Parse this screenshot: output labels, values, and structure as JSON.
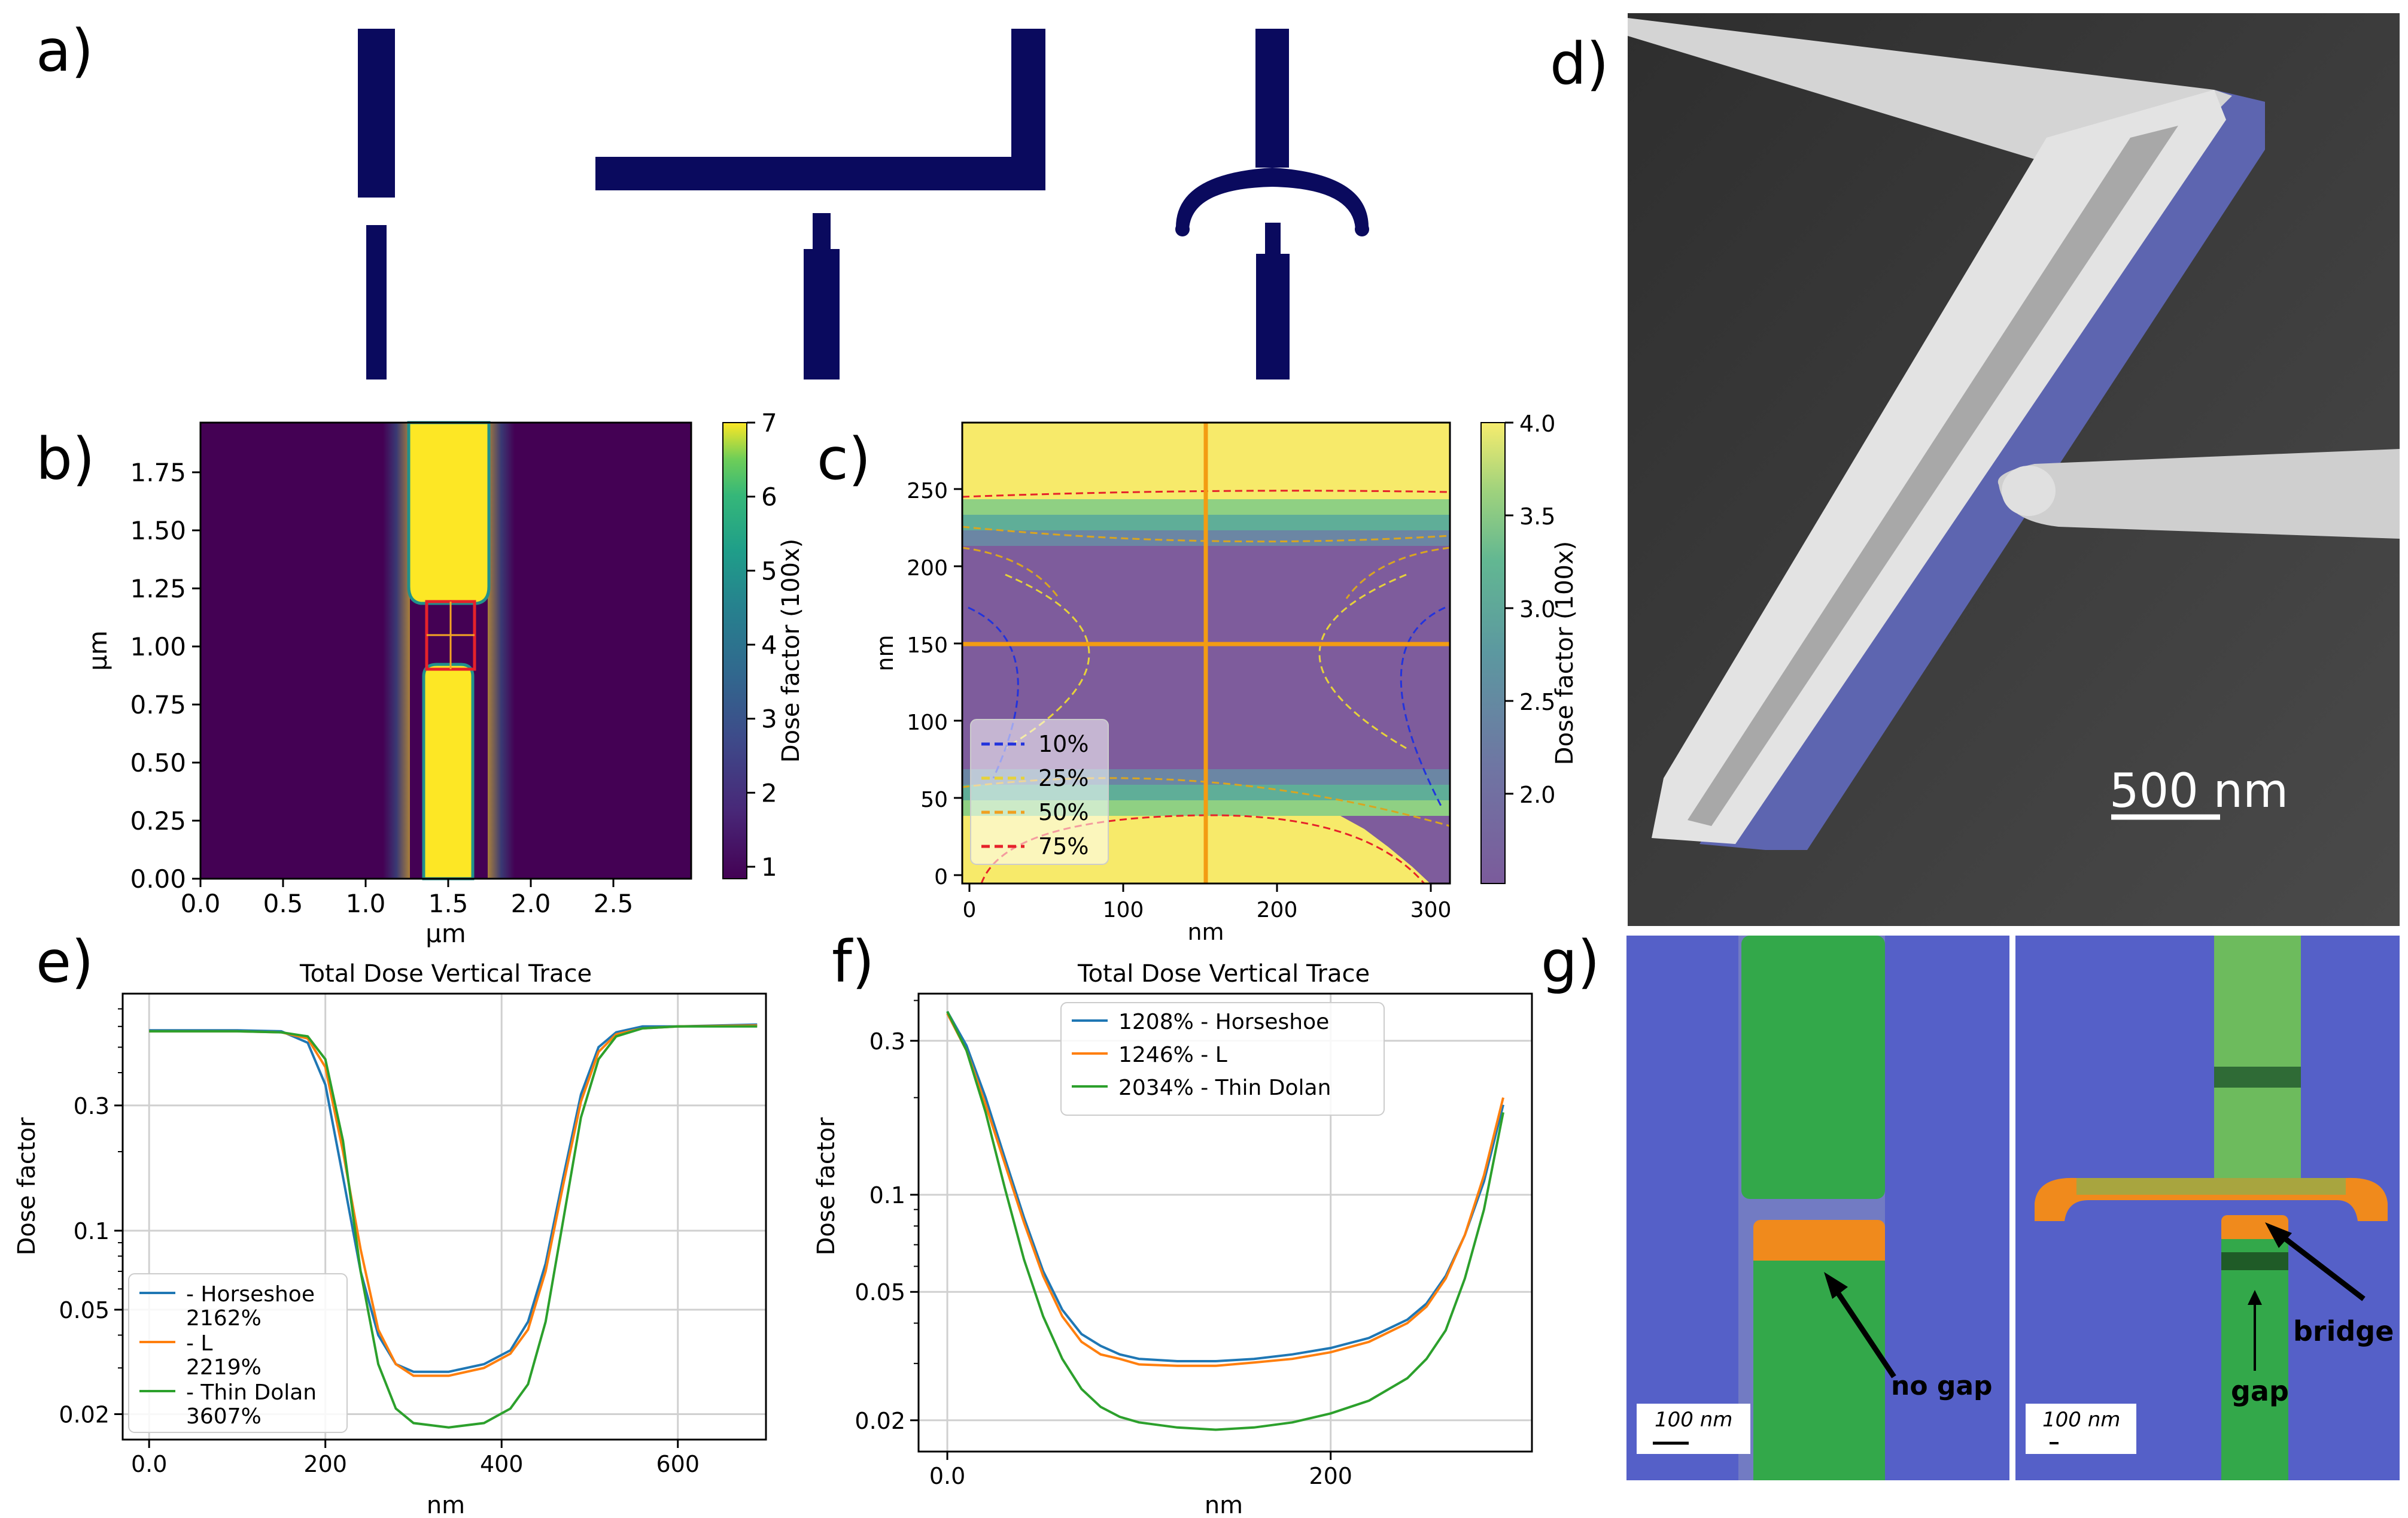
{
  "panel_labels": {
    "a": "a)",
    "b": "b)",
    "c": "c)",
    "d": "d)",
    "e": "e)",
    "f": "f)",
    "g": "g)"
  },
  "colors": {
    "navy": "#0a0a5e",
    "horseshoe": "#1f77b4",
    "l_shape": "#ff7f0e",
    "thin_dolan": "#2ca02c",
    "viridis_dark": "#440154",
    "viridis_yellow": "#fde725",
    "sem_bg": "#3d3d3d",
    "false_blue": "#5560c8",
    "false_green": "#33a84a",
    "false_orange": "#f08a1c"
  },
  "panel_b": {
    "ylabel": "μm",
    "xlabel": "μm",
    "xticks": [
      "0.0",
      "0.5",
      "1.0",
      "1.5",
      "2.0",
      "2.5"
    ],
    "yticks": [
      "0.00",
      "0.25",
      "0.50",
      "0.75",
      "1.00",
      "1.25",
      "1.50",
      "1.75"
    ],
    "colorbar_label": "Dose factor (100x)",
    "colorbar_ticks": [
      "1",
      "2",
      "3",
      "4",
      "5",
      "6",
      "7"
    ]
  },
  "panel_c": {
    "ylabel": "nm",
    "xlabel": "nm",
    "xticks": [
      "0",
      "100",
      "200",
      "300"
    ],
    "yticks": [
      "0",
      "50",
      "100",
      "150",
      "200",
      "250"
    ],
    "colorbar_label": "Dose factor (100x)",
    "colorbar_ticks": [
      "2.0",
      "2.5",
      "3.0",
      "3.5",
      "4.0"
    ],
    "legend": [
      "10%",
      "25%",
      "50%",
      "75%"
    ]
  },
  "panel_d": {
    "scalebar": "500 nm"
  },
  "panel_g": {
    "left_label": "no gap",
    "right_gap": "gap",
    "right_bridge": "bridge",
    "scale_left": "100 nm",
    "scale_right": "100 nm"
  },
  "chart_data": [
    {
      "id": "e",
      "type": "line",
      "title": "Total Dose Vertical Trace",
      "xlabel": "nm",
      "ylabel": "Dose factor",
      "yscale": "log",
      "xlim": [
        -30,
        700
      ],
      "ylim": [
        0.016,
        0.8
      ],
      "xticks": [
        0,
        200,
        400,
        600
      ],
      "xtick_labels": [
        "0.0",
        "200",
        "400",
        "600"
      ],
      "yticks": [
        0.02,
        0.05,
        0.1,
        0.3
      ],
      "ytick_labels": [
        "0.02",
        "0.05",
        "0.1",
        "0.3"
      ],
      "legend": [
        "- Horseshoe\n2162%",
        "- L\n2219%",
        "- Thin Dolan\n3607%"
      ],
      "series": [
        {
          "name": "- Horseshoe 2162%",
          "key": "horseshoe",
          "x": [
            0,
            100,
            150,
            180,
            200,
            220,
            240,
            260,
            280,
            300,
            340,
            380,
            410,
            430,
            450,
            470,
            490,
            510,
            530,
            560,
            600,
            690
          ],
          "y": [
            0.58,
            0.58,
            0.575,
            0.52,
            0.36,
            0.16,
            0.07,
            0.04,
            0.031,
            0.029,
            0.029,
            0.031,
            0.035,
            0.045,
            0.075,
            0.16,
            0.33,
            0.5,
            0.57,
            0.6,
            0.6,
            0.61
          ]
        },
        {
          "name": "- L 2219%",
          "key": "l_shape",
          "x": [
            0,
            100,
            150,
            180,
            200,
            220,
            240,
            260,
            280,
            300,
            340,
            380,
            410,
            430,
            450,
            470,
            490,
            510,
            530,
            560,
            600,
            690
          ],
          "y": [
            0.575,
            0.575,
            0.57,
            0.54,
            0.42,
            0.2,
            0.085,
            0.042,
            0.031,
            0.028,
            0.028,
            0.03,
            0.034,
            0.042,
            0.07,
            0.15,
            0.31,
            0.48,
            0.56,
            0.59,
            0.6,
            0.605
          ]
        },
        {
          "name": "- Thin Dolan 3607%",
          "key": "thin_dolan",
          "x": [
            0,
            100,
            150,
            180,
            200,
            220,
            240,
            260,
            280,
            300,
            340,
            380,
            410,
            430,
            450,
            470,
            490,
            510,
            530,
            560,
            600,
            690
          ],
          "y": [
            0.575,
            0.575,
            0.57,
            0.55,
            0.45,
            0.22,
            0.07,
            0.031,
            0.021,
            0.0185,
            0.0178,
            0.0185,
            0.021,
            0.026,
            0.045,
            0.11,
            0.27,
            0.45,
            0.55,
            0.59,
            0.6,
            0.6
          ]
        }
      ]
    },
    {
      "id": "f",
      "type": "line",
      "title": "Total Dose Vertical Trace",
      "xlabel": "nm",
      "ylabel": "Dose factor",
      "yscale": "log",
      "xlim": [
        -15,
        305
      ],
      "ylim": [
        0.016,
        0.42
      ],
      "xticks": [
        0,
        200
      ],
      "xtick_labels": [
        "0.0",
        "200"
      ],
      "yticks": [
        0.02,
        0.05,
        0.1,
        0.3
      ],
      "ytick_labels": [
        "0.02",
        "0.05",
        "0.1",
        "0.3"
      ],
      "legend": [
        "1208% - Horseshoe",
        "1246% - L",
        "2034% - Thin Dolan"
      ],
      "series": [
        {
          "name": "1208% - Horseshoe",
          "key": "horseshoe",
          "x": [
            0,
            10,
            20,
            30,
            40,
            50,
            60,
            70,
            80,
            90,
            100,
            120,
            140,
            160,
            180,
            200,
            220,
            240,
            250,
            260,
            270,
            280,
            290
          ],
          "y": [
            0.37,
            0.29,
            0.2,
            0.13,
            0.085,
            0.058,
            0.044,
            0.037,
            0.034,
            0.032,
            0.031,
            0.0305,
            0.0305,
            0.031,
            0.032,
            0.0335,
            0.036,
            0.041,
            0.046,
            0.056,
            0.075,
            0.11,
            0.19
          ]
        },
        {
          "name": "1246% - L",
          "key": "l_shape",
          "x": [
            0,
            10,
            20,
            30,
            40,
            50,
            60,
            70,
            80,
            90,
            100,
            120,
            140,
            160,
            180,
            200,
            220,
            240,
            250,
            260,
            270,
            280,
            290
          ],
          "y": [
            0.365,
            0.28,
            0.19,
            0.125,
            0.082,
            0.056,
            0.042,
            0.035,
            0.032,
            0.031,
            0.0298,
            0.0295,
            0.0295,
            0.0302,
            0.031,
            0.0325,
            0.035,
            0.04,
            0.045,
            0.055,
            0.075,
            0.115,
            0.2
          ]
        },
        {
          "name": "2034% - Thin Dolan",
          "key": "thin_dolan",
          "x": [
            0,
            10,
            20,
            30,
            40,
            50,
            60,
            70,
            80,
            90,
            100,
            120,
            140,
            160,
            180,
            200,
            220,
            240,
            250,
            260,
            270,
            280,
            290
          ],
          "y": [
            0.37,
            0.28,
            0.18,
            0.105,
            0.063,
            0.042,
            0.031,
            0.025,
            0.022,
            0.0205,
            0.0197,
            0.019,
            0.0187,
            0.019,
            0.0197,
            0.021,
            0.023,
            0.027,
            0.031,
            0.038,
            0.055,
            0.09,
            0.18
          ]
        }
      ]
    }
  ]
}
